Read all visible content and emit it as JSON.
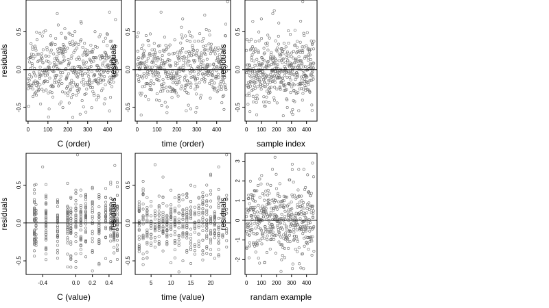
{
  "chart_data": [
    {
      "type": "scatter",
      "xlabel": "C (order)",
      "ylabel": "residuals",
      "xlim": [
        -10,
        470
      ],
      "ylim": [
        -0.68,
        0.92
      ],
      "xticks": [
        0,
        100,
        200,
        300,
        400
      ],
      "xtick_labels": [
        "0",
        "100",
        "200",
        "300",
        "400"
      ],
      "yticks": [
        -0.5,
        0,
        0.5
      ],
      "ytick_labels": [
        "-0.5",
        "0.0",
        "0.5"
      ],
      "hline": 0,
      "n_points": 450,
      "x_distribution": "index",
      "y_sd": 0.22,
      "noise_seed": 11,
      "points": [
        [
          147,
          0.74
        ],
        [
          410,
          0.76
        ],
        [
          440,
          0.66
        ],
        [
          60,
          0.48
        ],
        [
          225,
          -0.63
        ],
        [
          175,
          -0.5
        ]
      ]
    },
    {
      "type": "scatter",
      "xlabel": "time (order)",
      "ylabel": "residuals",
      "xlim": [
        -10,
        470
      ],
      "ylim": [
        -0.68,
        0.92
      ],
      "xticks": [
        0,
        100,
        200,
        300,
        400
      ],
      "xtick_labels": [
        "0",
        "100",
        "200",
        "300",
        "400"
      ],
      "yticks": [
        -0.5,
        0,
        0.5
      ],
      "ytick_labels": [
        "-0.5",
        "0.0",
        "0.5"
      ],
      "hline": 0,
      "n_points": 450,
      "x_distribution": "index",
      "y_sd": 0.22,
      "noise_seed": 23,
      "points": [
        [
          455,
          0.9
        ],
        [
          340,
          0.72
        ],
        [
          120,
          0.76
        ],
        [
          20,
          -0.6
        ],
        [
          270,
          -0.52
        ]
      ]
    },
    {
      "type": "scatter",
      "xlabel": "sample index",
      "ylabel": "residuals",
      "xlim": [
        -10,
        470
      ],
      "ylim": [
        -0.68,
        0.92
      ],
      "xticks": [
        0,
        100,
        200,
        300,
        400
      ],
      "xtick_labels": [
        "0",
        "100",
        "200",
        "300",
        "400"
      ],
      "yticks": [
        -0.5,
        0,
        0.5
      ],
      "ytick_labels": [
        "-0.5",
        "0.0",
        "0.5"
      ],
      "hline": 0,
      "n_points": 450,
      "x_distribution": "index",
      "y_sd": 0.22,
      "noise_seed": 37,
      "points": [
        [
          375,
          0.9
        ],
        [
          175,
          0.74
        ],
        [
          185,
          0.78
        ],
        [
          300,
          -0.56
        ],
        [
          120,
          -0.48
        ]
      ]
    },
    {
      "type": "scatter",
      "xlabel": "C (value)",
      "ylabel": "residuals",
      "xlim": [
        -0.6,
        0.55
      ],
      "ylim": [
        -0.68,
        0.92
      ],
      "xticks": [
        -0.4,
        0,
        0.2,
        0.4
      ],
      "xtick_labels": [
        "-0.4",
        "0.0",
        "0.2",
        "0.4"
      ],
      "yticks": [
        -0.5,
        0,
        0.5
      ],
      "ytick_labels": [
        "-0.5",
        "0.0",
        "0.5"
      ],
      "hline": 0,
      "n_points": 450,
      "x_distribution": "columns",
      "x_columns": [
        -0.5,
        -0.48,
        -0.36,
        -0.22,
        -0.1,
        -0.06,
        0.0,
        0.06,
        0.12,
        0.2,
        0.28,
        0.36,
        0.42,
        0.46,
        0.5
      ],
      "y_sd": 0.22,
      "noise_seed": 53,
      "points": [
        [
          0.02,
          0.9
        ],
        [
          -0.4,
          0.74
        ],
        [
          0.47,
          0.76
        ],
        [
          0.28,
          -0.55
        ],
        [
          -0.1,
          -0.58
        ]
      ]
    },
    {
      "type": "scatter",
      "xlabel": "time (value)",
      "ylabel": "residuals",
      "xlim": [
        1,
        25
      ],
      "ylim": [
        -0.68,
        0.92
      ],
      "xticks": [
        5,
        10,
        15,
        20
      ],
      "xtick_labels": [
        "5",
        "10",
        "15",
        "20"
      ],
      "yticks": [
        -0.5,
        0,
        0.5
      ],
      "ytick_labels": [
        "-0.5",
        "0.0",
        "0.5"
      ],
      "hline": 0,
      "n_points": 450,
      "x_distribution": "columns",
      "x_columns": [
        2,
        3,
        4,
        5,
        6,
        7,
        8,
        9,
        10,
        11,
        12,
        13,
        14,
        15,
        16,
        17,
        18,
        19,
        20,
        21,
        22,
        23,
        24
      ],
      "y_sd": 0.22,
      "noise_seed": 71,
      "points": [
        [
          24,
          0.9
        ],
        [
          22,
          0.74
        ],
        [
          6,
          0.77
        ],
        [
          3,
          -0.55
        ],
        [
          13,
          -0.5
        ]
      ]
    },
    {
      "type": "scatter",
      "xlabel": "randam example",
      "ylabel": "residuals",
      "xlim": [
        -10,
        470
      ],
      "ylim": [
        -2.75,
        3.4
      ],
      "xticks": [
        0,
        100,
        200,
        300,
        400
      ],
      "xtick_labels": [
        "0",
        "100",
        "200",
        "300",
        "400"
      ],
      "yticks": [
        -2,
        -1,
        0,
        1,
        2,
        3
      ],
      "ytick_labels": [
        "-2",
        "-1",
        "0",
        "1",
        "2",
        "3"
      ],
      "hline": 0,
      "n_points": 450,
      "x_distribution": "index",
      "y_sd": 0.95,
      "noise_seed": 97,
      "points": [
        [
          190,
          3.2
        ],
        [
          440,
          2.9
        ],
        [
          305,
          2.85
        ],
        [
          230,
          -2.6
        ],
        [
          380,
          -2.45
        ]
      ]
    }
  ]
}
